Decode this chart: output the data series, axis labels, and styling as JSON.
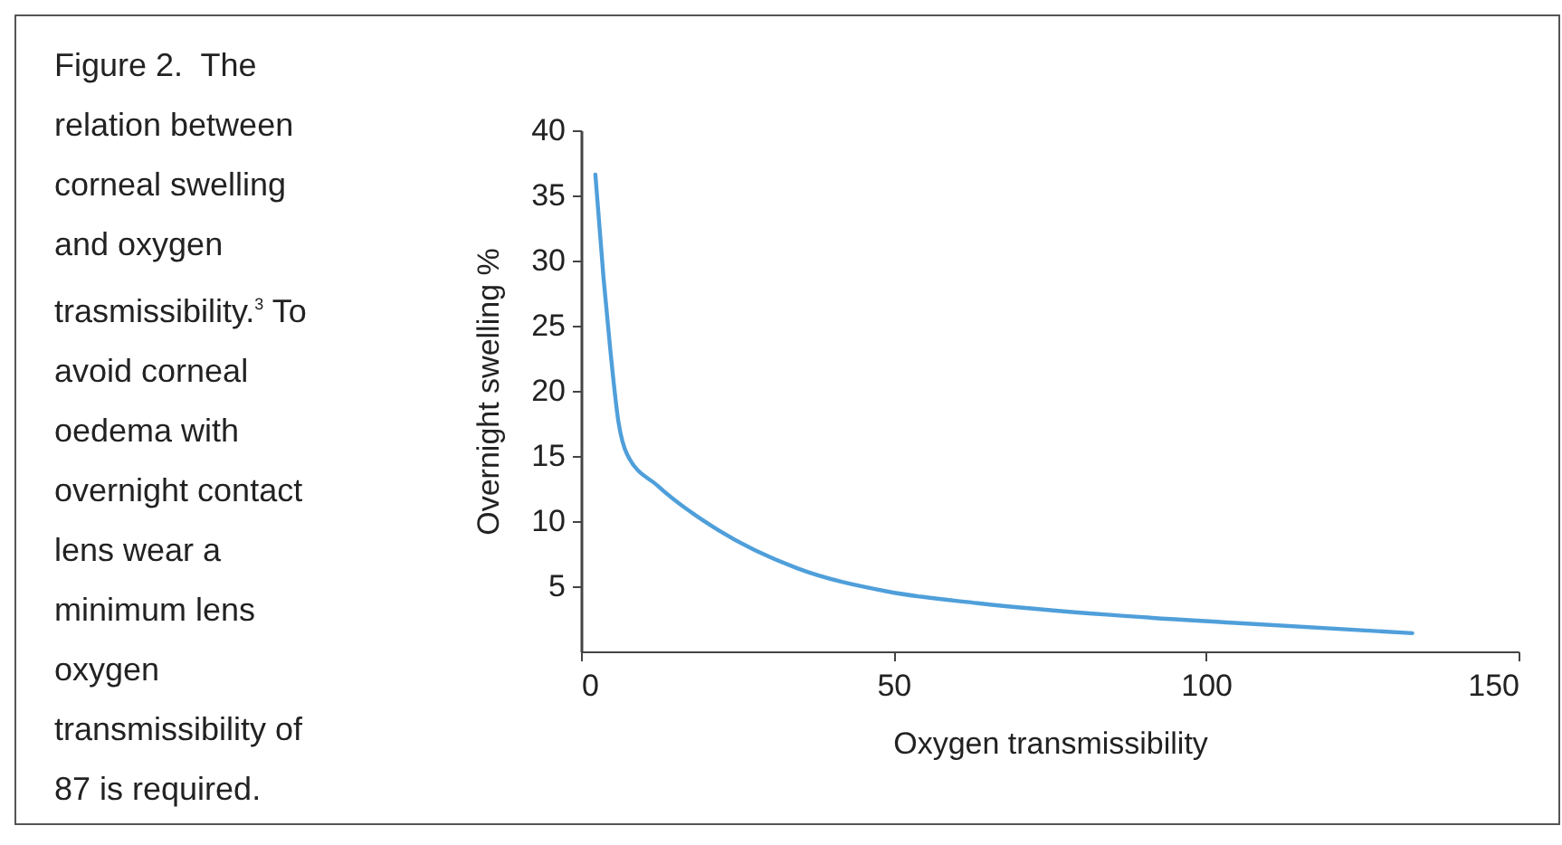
{
  "chart_data": {
    "type": "line",
    "title": "Figure 2.  The relation between corneal swelling and oxygen trasmissibility.$^{3}$ To avoid corneal oedema with overnight contact lens wear a minimum lens oxygen transmissibility of 87 is required.",
    "xlabel": "Oxygen transmissibility",
    "ylabel": "Overnight swelling %",
    "series": [
      {
        "color": "#4f9fda",
        "x": [
          2.3,
          3.6,
          4.7,
          6.0,
          7.4,
          12.3,
          22.0,
          34.5,
          49,
          63.5,
          84.7,
          104,
          133
        ],
        "values": [
          36.6,
          28.7,
          23.1,
          17.6,
          15.1,
          12.7,
          9.3,
          6.4,
          4.6,
          3.7,
          2.8,
          2.2,
          1.4
        ]
      }
    ],
    "xlim": [
      0,
      150
    ],
    "xticks": [
      0,
      50,
      100,
      150
    ],
    "ylim": [
      0,
      40
    ],
    "yticks": [
      5,
      10,
      15,
      20,
      25,
      30,
      35,
      40
    ],
    "grid": false,
    "marker": "none",
    "line_style": "solid"
  }
}
